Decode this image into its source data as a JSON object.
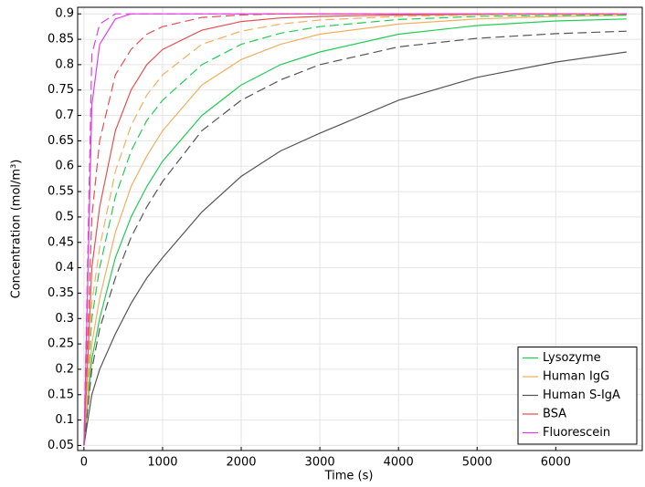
{
  "chart_data": {
    "type": "line",
    "xlabel": "Time (s)",
    "ylabel": "Concentration (mol/m³)",
    "x": [
      0,
      100,
      200,
      400,
      600,
      800,
      1000,
      1500,
      2000,
      2500,
      3000,
      4000,
      5000,
      6000,
      6900
    ],
    "series": [
      {
        "name": "Lysozyme",
        "color": "#22cc55",
        "values": [
          0.05,
          0.22,
          0.3,
          0.42,
          0.5,
          0.56,
          0.61,
          0.7,
          0.76,
          0.8,
          0.825,
          0.86,
          0.877,
          0.886,
          0.89
        ]
      },
      {
        "name": "Human IgG",
        "color": "#f0b060",
        "values": [
          0.05,
          0.25,
          0.34,
          0.47,
          0.56,
          0.62,
          0.67,
          0.76,
          0.81,
          0.84,
          0.86,
          0.88,
          0.89,
          0.895,
          0.897
        ]
      },
      {
        "name": "Human S-IgA",
        "color": "#555555",
        "values": [
          0.05,
          0.15,
          0.2,
          0.27,
          0.33,
          0.38,
          0.42,
          0.51,
          0.58,
          0.63,
          0.665,
          0.73,
          0.775,
          0.805,
          0.825
        ]
      },
      {
        "name": "BSA",
        "color": "#e55050",
        "values": [
          0.05,
          0.4,
          0.52,
          0.67,
          0.75,
          0.8,
          0.83,
          0.868,
          0.885,
          0.892,
          0.895,
          0.898,
          0.899,
          0.9,
          0.9
        ]
      },
      {
        "name": "Fluorescein",
        "color": "#e040e0",
        "values": [
          0.05,
          0.72,
          0.84,
          0.89,
          0.9,
          0.9,
          0.9,
          0.9,
          0.9,
          0.9,
          0.9,
          0.9,
          0.9,
          0.9,
          0.9
        ]
      },
      {
        "color": "#22cc55",
        "dash": true,
        "values": [
          0.05,
          0.3,
          0.4,
          0.54,
          0.63,
          0.69,
          0.73,
          0.8,
          0.84,
          0.862,
          0.875,
          0.889,
          0.895,
          0.897,
          0.898
        ]
      },
      {
        "color": "#f0b060",
        "dash": true,
        "values": [
          0.05,
          0.33,
          0.44,
          0.59,
          0.68,
          0.74,
          0.78,
          0.84,
          0.866,
          0.88,
          0.888,
          0.895,
          0.898,
          0.899,
          0.9
        ]
      },
      {
        "color": "#555555",
        "dash": true,
        "values": [
          0.05,
          0.2,
          0.28,
          0.38,
          0.46,
          0.52,
          0.57,
          0.67,
          0.73,
          0.77,
          0.8,
          0.835,
          0.852,
          0.861,
          0.866
        ]
      },
      {
        "color": "#e55050",
        "dash": true,
        "values": [
          0.05,
          0.5,
          0.65,
          0.78,
          0.83,
          0.86,
          0.875,
          0.893,
          0.898,
          0.9,
          0.9,
          0.9,
          0.9,
          0.9,
          0.9
        ]
      },
      {
        "color": "#e040e0",
        "dash": true,
        "values": [
          0.05,
          0.82,
          0.88,
          0.9,
          0.9,
          0.9,
          0.9,
          0.9,
          0.9,
          0.9,
          0.9,
          0.9,
          0.9,
          0.9,
          0.9
        ]
      }
    ],
    "xlim": [
      -80,
      7100
    ],
    "ylim": [
      0.04,
      0.913
    ],
    "xticks": [
      0,
      1000,
      2000,
      3000,
      4000,
      5000,
      6000
    ],
    "yticks": [
      0.05,
      0.1,
      0.15,
      0.2,
      0.25,
      0.3,
      0.35,
      0.4,
      0.45,
      0.5,
      0.55,
      0.6,
      0.65,
      0.7,
      0.75,
      0.8,
      0.85,
      0.9
    ],
    "grid": true,
    "legend": "lower right"
  }
}
